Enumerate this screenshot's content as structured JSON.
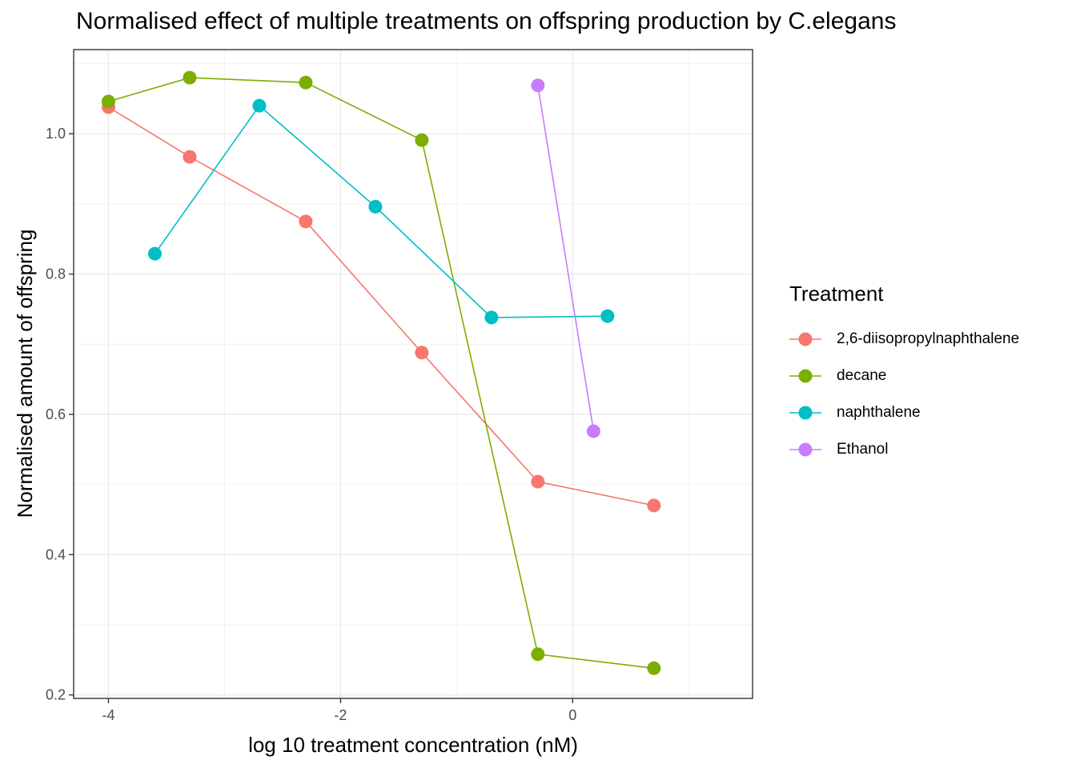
{
  "chart_data": {
    "type": "line",
    "title": "Normalised effect of multiple treatments on offspring production by C.elegans",
    "xlabel": "log 10 treatment concentration (nM)",
    "ylabel": "Normalised amount of offspring",
    "xlim": [
      -4.3,
      1.55
    ],
    "ylim": [
      0.195,
      1.12
    ],
    "x_ticks": [
      -4,
      -2,
      0
    ],
    "x_tick_labels": [
      "-4",
      "-2",
      "0"
    ],
    "y_ticks": [
      0.2,
      0.4,
      0.6,
      0.8,
      1.0
    ],
    "y_tick_labels": [
      "0.2",
      "0.4",
      "0.6",
      "0.8",
      "1.0"
    ],
    "grid": true,
    "legend_title": "Treatment",
    "legend_position": "right",
    "series": [
      {
        "name": "2,6-diisopropylnaphthalene",
        "color": "#F8766D",
        "x": [
          -4.0,
          -3.3,
          -2.3,
          -1.3,
          -0.3,
          0.7
        ],
        "y": [
          1.038,
          0.967,
          0.875,
          0.688,
          0.504,
          0.47
        ]
      },
      {
        "name": "decane",
        "color": "#7CAE00",
        "x": [
          -4.0,
          -3.3,
          -2.3,
          -1.3,
          -0.3,
          0.7
        ],
        "y": [
          1.046,
          1.08,
          1.073,
          0.991,
          0.258,
          0.238
        ]
      },
      {
        "name": "naphthalene",
        "color": "#00BFC4",
        "x": [
          -3.6,
          -2.7,
          -1.7,
          -0.7,
          0.3
        ],
        "y": [
          0.829,
          1.04,
          0.896,
          0.738,
          0.74
        ]
      },
      {
        "name": "Ethanol",
        "color": "#C77CFF",
        "x": [
          -0.3,
          0.18
        ],
        "y": [
          1.069,
          0.576
        ]
      }
    ]
  }
}
